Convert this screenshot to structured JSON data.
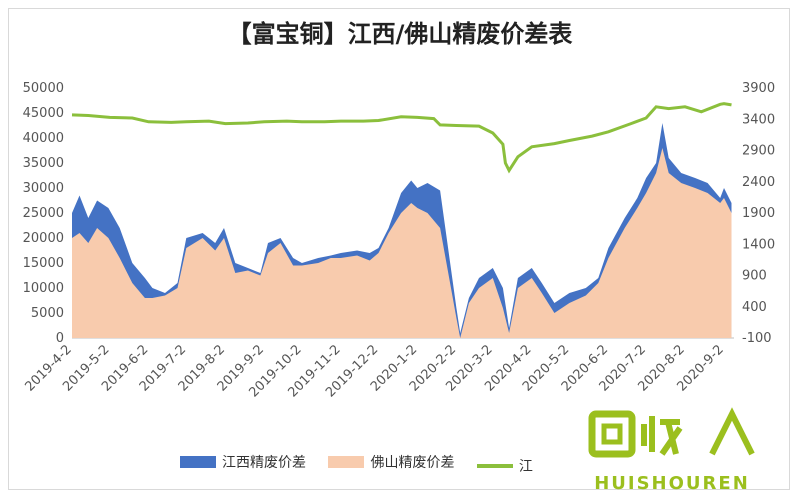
{
  "chart_data": {
    "type": "area",
    "title": "【富宝铜】江西/佛山精废价差表",
    "x_ticks": [
      "2019-4-2",
      "2019-5-2",
      "2019-6-2",
      "2019-7-2",
      "2019-8-2",
      "2019-9-2",
      "2019-10-2",
      "2019-11-2",
      "2019-12-2",
      "2020-1-2",
      "2020-2-2",
      "2020-3-2",
      "2020-4-2",
      "2020-5-2",
      "2020-6-2",
      "2020-7-2",
      "2020-8-2",
      "2020-9-2"
    ],
    "y_left": {
      "min": 0,
      "max": 50000,
      "ticks": [
        0,
        5000,
        10000,
        15000,
        20000,
        25000,
        30000,
        35000,
        40000,
        45000,
        50000
      ]
    },
    "y_right": {
      "min": -100,
      "max": 3900,
      "ticks": [
        -100,
        400,
        900,
        1400,
        1900,
        2400,
        2900,
        3400,
        3900
      ]
    },
    "series": [
      {
        "name": "江西精废价差",
        "axis": "left",
        "color": "#4472c4",
        "points": [
          [
            "2019-4-2",
            25000
          ],
          [
            "2019-4-8",
            28500
          ],
          [
            "2019-4-15",
            24000
          ],
          [
            "2019-4-22",
            27500
          ],
          [
            "2019-5-1",
            26000
          ],
          [
            "2019-5-10",
            22000
          ],
          [
            "2019-5-20",
            15000
          ],
          [
            "2019-5-30",
            12000
          ],
          [
            "2019-6-5",
            10000
          ],
          [
            "2019-6-15",
            9000
          ],
          [
            "2019-6-25",
            11000
          ],
          [
            "2019-7-2",
            20000
          ],
          [
            "2019-7-15",
            21000
          ],
          [
            "2019-7-25",
            19000
          ],
          [
            "2019-8-1",
            22000
          ],
          [
            "2019-8-10",
            15000
          ],
          [
            "2019-8-20",
            14000
          ],
          [
            "2019-8-30",
            13000
          ],
          [
            "2019-9-5",
            19000
          ],
          [
            "2019-9-15",
            20000
          ],
          [
            "2019-9-25",
            16000
          ],
          [
            "2019-10-2",
            15000
          ],
          [
            "2019-10-15",
            16000
          ],
          [
            "2019-10-25",
            16500
          ],
          [
            "2019-11-2",
            17000
          ],
          [
            "2019-11-15",
            17500
          ],
          [
            "2019-11-25",
            17000
          ],
          [
            "2019-12-2",
            18000
          ],
          [
            "2019-12-10",
            22000
          ],
          [
            "2019-12-20",
            29000
          ],
          [
            "2019-12-28",
            31500
          ],
          [
            "2020-1-2",
            30000
          ],
          [
            "2020-1-10",
            31000
          ],
          [
            "2020-1-20",
            29500
          ],
          [
            "2020-2-2",
            6000
          ],
          [
            "2020-2-5",
            1000
          ],
          [
            "2020-2-12",
            8000
          ],
          [
            "2020-2-20",
            12000
          ],
          [
            "2020-3-2",
            14000
          ],
          [
            "2020-3-10",
            10000
          ],
          [
            "2020-3-15",
            2000
          ],
          [
            "2020-3-22",
            12000
          ],
          [
            "2020-4-2",
            14000
          ],
          [
            "2020-4-10",
            11000
          ],
          [
            "2020-4-20",
            7000
          ],
          [
            "2020-5-2",
            9000
          ],
          [
            "2020-5-15",
            10000
          ],
          [
            "2020-5-25",
            12000
          ],
          [
            "2020-6-2",
            18000
          ],
          [
            "2020-6-15",
            24000
          ],
          [
            "2020-6-25",
            28000
          ],
          [
            "2020-7-2",
            32000
          ],
          [
            "2020-7-10",
            35000
          ],
          [
            "2020-7-15",
            43000
          ],
          [
            "2020-7-20",
            36000
          ],
          [
            "2020-7-30",
            33000
          ],
          [
            "2020-8-10",
            32000
          ],
          [
            "2020-8-20",
            31000
          ],
          [
            "2020-8-30",
            28000
          ],
          [
            "2020-9-2",
            30000
          ],
          [
            "2020-9-8",
            27000
          ]
        ]
      },
      {
        "name": "佛山精废价差",
        "axis": "left",
        "color": "#f8cbad",
        "points": [
          [
            "2019-4-2",
            20000
          ],
          [
            "2019-4-8",
            21000
          ],
          [
            "2019-4-15",
            19000
          ],
          [
            "2019-4-22",
            22000
          ],
          [
            "2019-5-1",
            20000
          ],
          [
            "2019-5-10",
            16000
          ],
          [
            "2019-5-20",
            11000
          ],
          [
            "2019-5-30",
            8000
          ],
          [
            "2019-6-5",
            8000
          ],
          [
            "2019-6-15",
            8500
          ],
          [
            "2019-6-25",
            10000
          ],
          [
            "2019-7-2",
            18000
          ],
          [
            "2019-7-15",
            20000
          ],
          [
            "2019-7-25",
            17500
          ],
          [
            "2019-8-1",
            20000
          ],
          [
            "2019-8-10",
            13000
          ],
          [
            "2019-8-20",
            13500
          ],
          [
            "2019-8-30",
            12500
          ],
          [
            "2019-9-5",
            17000
          ],
          [
            "2019-9-15",
            19000
          ],
          [
            "2019-9-25",
            14500
          ],
          [
            "2019-10-2",
            14500
          ],
          [
            "2019-10-15",
            15000
          ],
          [
            "2019-10-25",
            16000
          ],
          [
            "2019-11-2",
            16000
          ],
          [
            "2019-11-15",
            16500
          ],
          [
            "2019-11-25",
            15500
          ],
          [
            "2019-12-2",
            17000
          ],
          [
            "2019-12-10",
            21000
          ],
          [
            "2019-12-20",
            25000
          ],
          [
            "2019-12-28",
            27000
          ],
          [
            "2020-1-2",
            26000
          ],
          [
            "2020-1-10",
            25000
          ],
          [
            "2020-1-20",
            22000
          ],
          [
            "2020-2-2",
            4000
          ],
          [
            "2020-2-5",
            0
          ],
          [
            "2020-2-12",
            7000
          ],
          [
            "2020-2-20",
            10000
          ],
          [
            "2020-3-2",
            12000
          ],
          [
            "2020-3-10",
            6000
          ],
          [
            "2020-3-15",
            1000
          ],
          [
            "2020-3-22",
            10000
          ],
          [
            "2020-4-2",
            12000
          ],
          [
            "2020-4-10",
            9000
          ],
          [
            "2020-4-20",
            5000
          ],
          [
            "2020-5-2",
            7000
          ],
          [
            "2020-5-15",
            8500
          ],
          [
            "2020-5-25",
            11000
          ],
          [
            "2020-6-2",
            16000
          ],
          [
            "2020-6-15",
            22000
          ],
          [
            "2020-6-25",
            26000
          ],
          [
            "2020-7-2",
            29000
          ],
          [
            "2020-7-10",
            33000
          ],
          [
            "2020-7-15",
            38000
          ],
          [
            "2020-7-20",
            33000
          ],
          [
            "2020-7-30",
            31000
          ],
          [
            "2020-8-10",
            30000
          ],
          [
            "2020-8-20",
            29000
          ],
          [
            "2020-8-30",
            27000
          ],
          [
            "2020-9-2",
            28000
          ],
          [
            "2020-9-8",
            25000
          ]
        ]
      },
      {
        "name": "江",
        "axis": "right",
        "color": "#8bbf3c",
        "points": [
          [
            "2019-4-2",
            3470
          ],
          [
            "2019-4-15",
            3460
          ],
          [
            "2019-5-2",
            3430
          ],
          [
            "2019-5-20",
            3420
          ],
          [
            "2019-6-2",
            3360
          ],
          [
            "2019-6-20",
            3350
          ],
          [
            "2019-7-2",
            3360
          ],
          [
            "2019-7-20",
            3370
          ],
          [
            "2019-8-2",
            3330
          ],
          [
            "2019-8-20",
            3340
          ],
          [
            "2019-9-2",
            3360
          ],
          [
            "2019-9-20",
            3370
          ],
          [
            "2019-10-2",
            3360
          ],
          [
            "2019-10-20",
            3360
          ],
          [
            "2019-11-2",
            3370
          ],
          [
            "2019-11-20",
            3370
          ],
          [
            "2019-12-2",
            3380
          ],
          [
            "2019-12-20",
            3440
          ],
          [
            "2020-1-2",
            3430
          ],
          [
            "2020-1-15",
            3410
          ],
          [
            "2020-1-20",
            3310
          ],
          [
            "2020-2-2",
            3300
          ],
          [
            "2020-2-20",
            3290
          ],
          [
            "2020-3-2",
            3180
          ],
          [
            "2020-3-10",
            3000
          ],
          [
            "2020-3-12",
            2700
          ],
          [
            "2020-3-15",
            2580
          ],
          [
            "2020-3-22",
            2800
          ],
          [
            "2020-4-2",
            2960
          ],
          [
            "2020-4-20",
            3010
          ],
          [
            "2020-5-2",
            3060
          ],
          [
            "2020-5-20",
            3130
          ],
          [
            "2020-6-2",
            3200
          ],
          [
            "2020-6-20",
            3330
          ],
          [
            "2020-7-2",
            3420
          ],
          [
            "2020-7-10",
            3600
          ],
          [
            "2020-7-20",
            3570
          ],
          [
            "2020-8-2",
            3600
          ],
          [
            "2020-8-15",
            3520
          ],
          [
            "2020-8-30",
            3640
          ],
          [
            "2020-9-2",
            3650
          ],
          [
            "2020-9-8",
            3630
          ]
        ]
      }
    ],
    "legend": [
      "江西精废价差",
      "佛山精废价差",
      "江"
    ],
    "legend_position": "bottom"
  },
  "watermark": {
    "text": "HUISHOUREN",
    "logo": "回收"
  }
}
